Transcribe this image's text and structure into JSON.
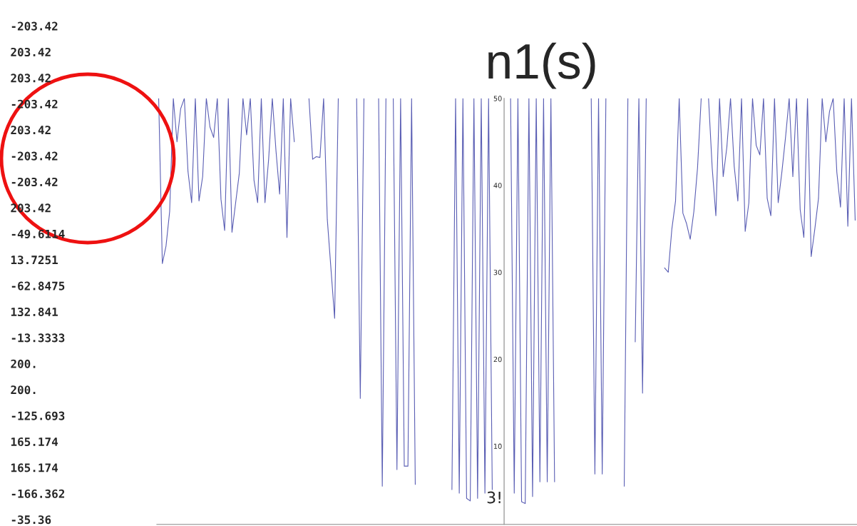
{
  "chart_data": {
    "type": "line",
    "title": "n1(s)",
    "annotations": [
      "-203.42",
      "203.42",
      "203.42",
      "-203.42",
      "203.42",
      "-203.42",
      "-203.42",
      "203.42",
      "-49.6114",
      "13.7251",
      "-62.8475",
      "132.841",
      "-13.3333",
      "200.",
      "200.",
      "-125.693",
      "165.174",
      "165.174",
      "-166.362",
      "-35.36",
      "3!"
    ],
    "categories": [
      null,
      null,
      null,
      null,
      null,
      null,
      null,
      null,
      null,
      null,
      null,
      null,
      null,
      null,
      null,
      null,
      null,
      null,
      null,
      null,
      null,
      null,
      null,
      null,
      null,
      null,
      null,
      null,
      null,
      null,
      null,
      null,
      null,
      null,
      null,
      null,
      null,
      null,
      null,
      null,
      null,
      null,
      null,
      null,
      null,
      null,
      null,
      null,
      null,
      null,
      null,
      null,
      null,
      null,
      null,
      null,
      null,
      null,
      null,
      null,
      null,
      null,
      null,
      null,
      null,
      null,
      null,
      null,
      null,
      null,
      null,
      null,
      null,
      null,
      null,
      null,
      null,
      null,
      null,
      null,
      null,
      null,
      null,
      null,
      null,
      null,
      null,
      null,
      null,
      null,
      null,
      null,
      null,
      null,
      null,
      null,
      null,
      null,
      null,
      null,
      null,
      null,
      null,
      null,
      null,
      null,
      null,
      null,
      null,
      null,
      null,
      null,
      null,
      null,
      null,
      null,
      null,
      null,
      null,
      null,
      null,
      null,
      null,
      null,
      null,
      null,
      null,
      null,
      null,
      null,
      null,
      null,
      null,
      null,
      null,
      null,
      null,
      null,
      null,
      null,
      null,
      null,
      null,
      null,
      null,
      null,
      null,
      null,
      null,
      null,
      null,
      null,
      null,
      null,
      null,
      null,
      null,
      null,
      null,
      null,
      null,
      null,
      null,
      null,
      null,
      null,
      null,
      null,
      null,
      null,
      null,
      null,
      null,
      null,
      null,
      null,
      null,
      null,
      null,
      null,
      null,
      null,
      null,
      null,
      null,
      null,
      null,
      null,
      null,
      null,
      null
    ],
    "series": [
      {
        "color": "#5a5eb4",
        "values": [
          50,
          31,
          33,
          37,
          50,
          45,
          48.8,
          50,
          41.6,
          38,
          50,
          38.2,
          41,
          50,
          46.7,
          45.5,
          50,
          38.4,
          34.8,
          50,
          34.6,
          38,
          41.4,
          50,
          45.8,
          50,
          40.6,
          38,
          50,
          38,
          43,
          50,
          44,
          39,
          50,
          34,
          50,
          45,
          null,
          null,
          null,
          50,
          43,
          43.3,
          43.2,
          50,
          36.1,
          30.4,
          24.7,
          50,
          null,
          null,
          null,
          null,
          50,
          15.5,
          50,
          null,
          null,
          null,
          50,
          5.4,
          50,
          null,
          50,
          7.3,
          50,
          7.7,
          7.7,
          50,
          5.6,
          null,
          null,
          null,
          null,
          null,
          null,
          null,
          null,
          null,
          5.0,
          50,
          4.6,
          50,
          4.0,
          3.7,
          50,
          4.0,
          50,
          4.6,
          50,
          5,
          null,
          null,
          null,
          null,
          50,
          4.6,
          50,
          3.6,
          3.4,
          50,
          4.2,
          50,
          5.9,
          50,
          5.9,
          50,
          5.9,
          null,
          null,
          null,
          null,
          null,
          null,
          null,
          null,
          null,
          50,
          6.8,
          50,
          6.8,
          50,
          null,
          null,
          null,
          null,
          5.4,
          50,
          null,
          22,
          50,
          16.1,
          50,
          null,
          null,
          null,
          null,
          30.5,
          30,
          35,
          38.2,
          50,
          36.8,
          35.6,
          33.8,
          37,
          42,
          50,
          null,
          50,
          42,
          36.5,
          50,
          41,
          44.4,
          50,
          42.2,
          38.2,
          50,
          34.7,
          38,
          50,
          44.6,
          43.5,
          50,
          38.5,
          36.5,
          50,
          38,
          41.5,
          45.5,
          50,
          41,
          50,
          37.2,
          34,
          50,
          31.8,
          35,
          38.5,
          50,
          45,
          48.5,
          50,
          41.5,
          37.5,
          50,
          35.3,
          50,
          36
        ]
      }
    ],
    "ylim": [
      1,
      50
    ],
    "yticks": [
      10,
      20,
      30,
      40,
      50
    ],
    "grid": false,
    "tick_labels": "y"
  }
}
